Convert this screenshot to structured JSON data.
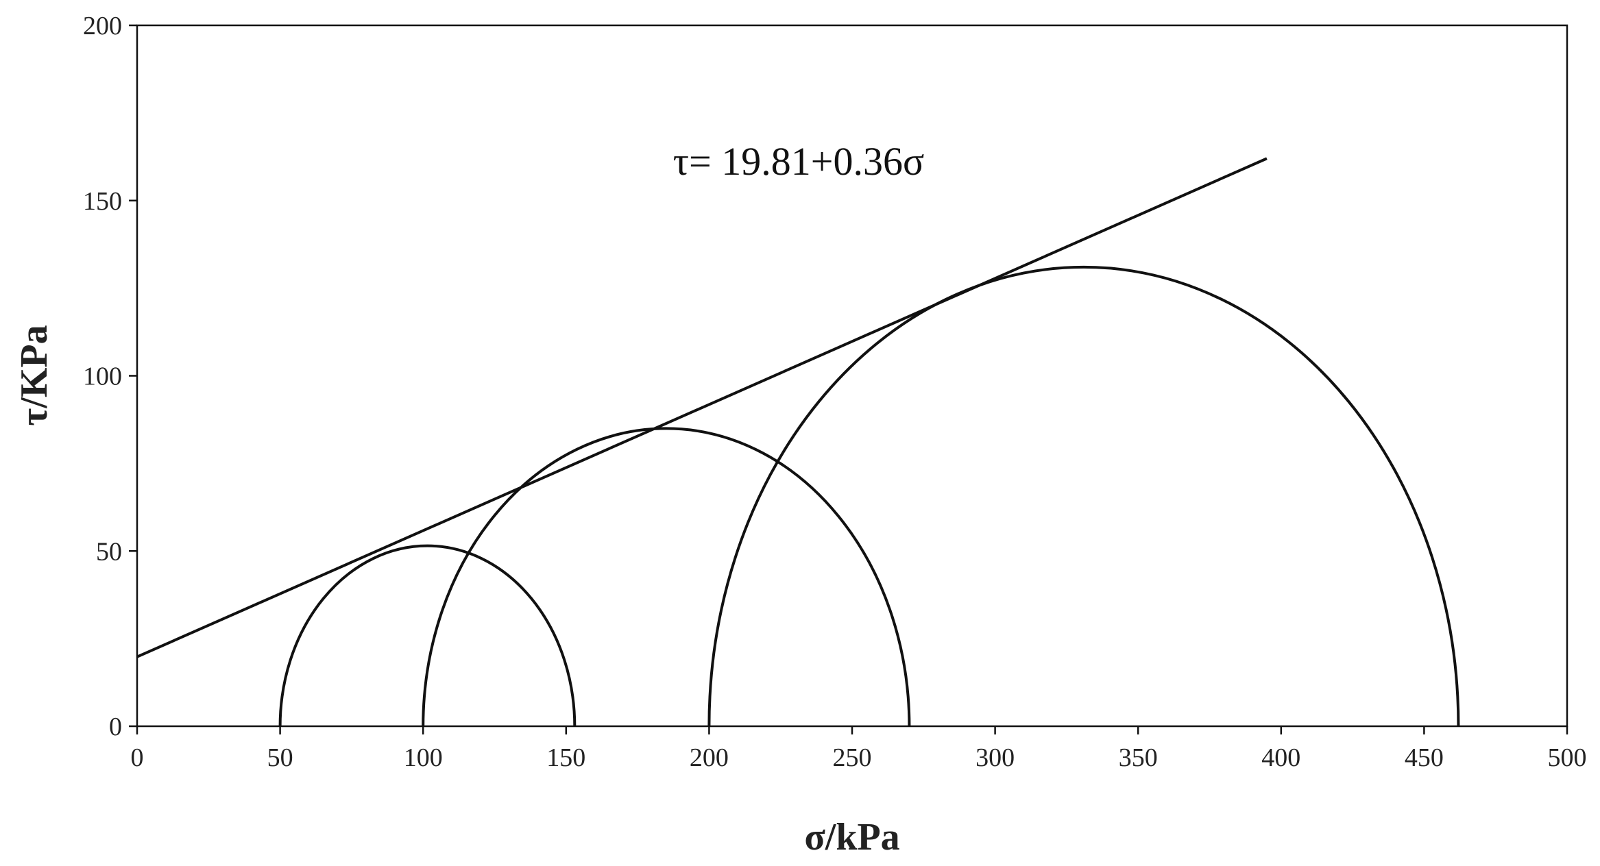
{
  "chart_data": {
    "type": "mohr",
    "annotation": "τ= 19.81+0.36σ",
    "x_label": "σ/kPa",
    "y_label": "τ/KPa",
    "xlim": [
      0,
      500
    ],
    "ylim": [
      0,
      200
    ],
    "xticks": [
      0,
      50,
      100,
      150,
      200,
      250,
      300,
      350,
      400,
      450,
      500
    ],
    "yticks": [
      0,
      50,
      100,
      150,
      200
    ],
    "color": "#111111",
    "circles": [
      {
        "sigma_min": 50,
        "sigma_max": 153
      },
      {
        "sigma_min": 100,
        "sigma_max": 270
      },
      {
        "sigma_min": 200,
        "sigma_max": 462
      }
    ],
    "envelope": {
      "x": [
        0,
        395
      ],
      "values": [
        19.81,
        162
      ]
    }
  }
}
